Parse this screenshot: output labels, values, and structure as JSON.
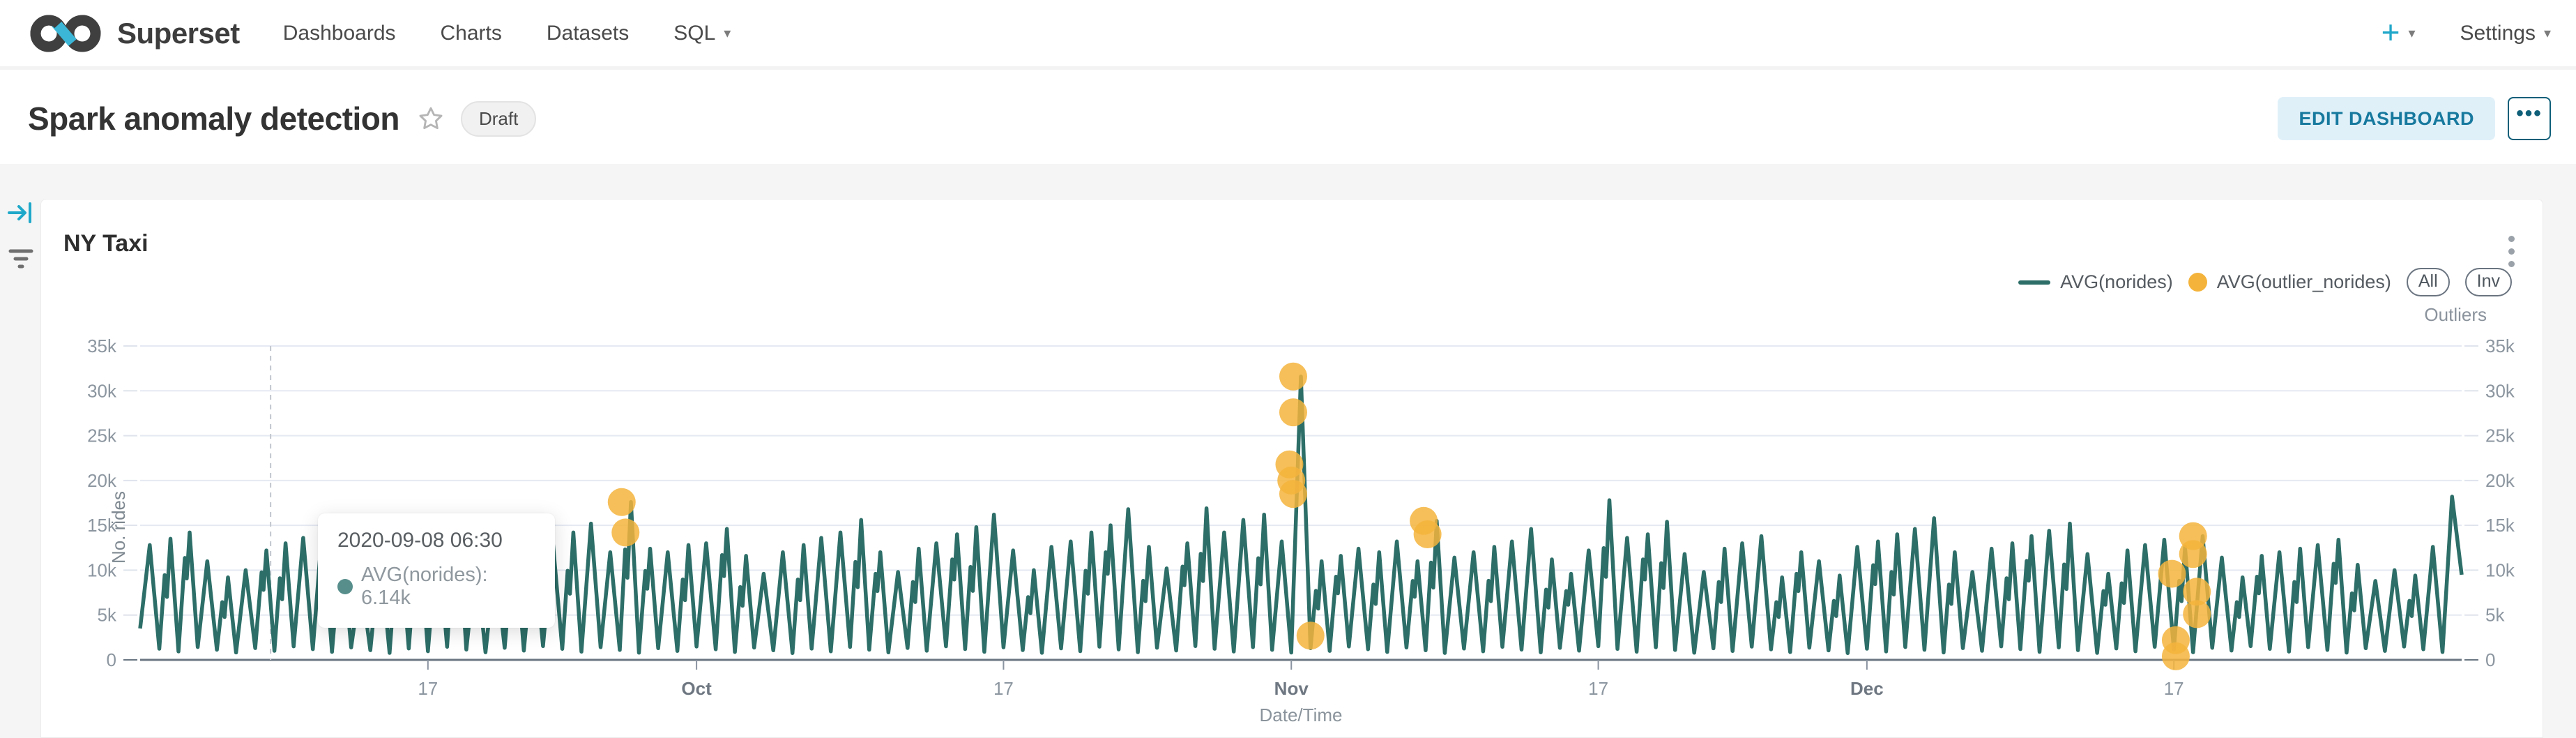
{
  "navbar": {
    "brand": "Superset",
    "items": [
      {
        "label": "Dashboards"
      },
      {
        "label": "Charts"
      },
      {
        "label": "Datasets"
      },
      {
        "label": "SQL"
      }
    ],
    "sql_caret": "▾",
    "plus_label": "+",
    "plus_caret": "▾",
    "settings_label": "Settings",
    "settings_caret": "▾",
    "accent_color": "#20A7C9"
  },
  "header": {
    "title": "Spark anomaly detection",
    "badge": "Draft",
    "edit_button": "EDIT DASHBOARD",
    "more_button": "•••"
  },
  "chart_panel": {
    "title": "NY Taxi",
    "legend": [
      {
        "label": "AVG(norides)",
        "type": "line",
        "color": "#2d6e68"
      },
      {
        "label": "AVG(outlier_norides)",
        "type": "dot",
        "color": "#f4b43c"
      }
    ],
    "buttons": {
      "all": "All",
      "inv": "Inv"
    },
    "buttons_caption": "Outliers"
  },
  "tooltip": {
    "date": "2020-09-08 06:30",
    "series_label": "AVG(norides): 6.14k"
  },
  "chart_data": {
    "type": "line",
    "title": "NY Taxi",
    "xlabel": "Date/Time",
    "ylabel": "No. rides",
    "x_start_date": "2020-09-02",
    "num_days": 121,
    "ylim": [
      0,
      35000
    ],
    "unit": "thousands of rides, half-hourly AVG(norides)",
    "grid": true,
    "legend_position": "top-right",
    "y_ticks": [
      {
        "v": 0,
        "label": "0"
      },
      {
        "v": 5,
        "label": "5k"
      },
      {
        "v": 10,
        "label": "10k"
      },
      {
        "v": 15,
        "label": "15k"
      },
      {
        "v": 20,
        "label": "20k"
      },
      {
        "v": 25,
        "label": "25k"
      },
      {
        "v": 30,
        "label": "30k"
      },
      {
        "v": 35,
        "label": "35k"
      }
    ],
    "x_ticks": [
      {
        "day": 15,
        "label": "17",
        "bold": false
      },
      {
        "day": 29,
        "label": "Oct",
        "bold": true
      },
      {
        "day": 45,
        "label": "17",
        "bold": false
      },
      {
        "day": 60,
        "label": "Nov",
        "bold": true
      },
      {
        "day": 76,
        "label": "17",
        "bold": false
      },
      {
        "day": 90,
        "label": "Dec",
        "bold": true
      },
      {
        "day": 106,
        "label": "17",
        "bold": false
      }
    ],
    "series": [
      {
        "name": "AVG(norides)",
        "color": "#2d6e68",
        "start_value": 3.5,
        "end_value": 9.5,
        "baseline_trough": 1.0,
        "daily_peaks": [
          12.8,
          13.5,
          14.2,
          11.0,
          9.2,
          10.0,
          12.2,
          13.0,
          13.6,
          14.8,
          11.4,
          9.0,
          12.0,
          12.6,
          13.2,
          14.0,
          15.0,
          11.2,
          9.4,
          12.2,
          12.8,
          13.4,
          14.2,
          15.2,
          12.0,
          17.6,
          12.4,
          12.0,
          12.8,
          13.0,
          14.6,
          11.6,
          9.6,
          12.0,
          12.8,
          13.6,
          14.2,
          15.6,
          12.0,
          9.8,
          12.4,
          13.0,
          14.0,
          14.8,
          16.2,
          12.2,
          10.0,
          12.6,
          13.2,
          14.2,
          15.0,
          16.8,
          12.6,
          10.2,
          13.0,
          16.9,
          14.2,
          15.6,
          16.2,
          13.2,
          31.6,
          11.0,
          11.6,
          12.4,
          12.0,
          13.2,
          11.0,
          15.5,
          11.4,
          12.0,
          12.6,
          13.2,
          14.6,
          11.2,
          9.6,
          12.2,
          17.8,
          13.6,
          14.0,
          15.4,
          11.8,
          9.8,
          12.4,
          13.0,
          13.8,
          9.2,
          12.0,
          11.0,
          9.4,
          12.6,
          13.2,
          14.0,
          14.6,
          15.8,
          12.0,
          9.8,
          12.4,
          13.0,
          13.8,
          14.4,
          15.2,
          11.8,
          9.6,
          12.2,
          12.8,
          13.4,
          12.6,
          13.8,
          11.4,
          9.2,
          11.6,
          12.0,
          12.4,
          12.8,
          13.4,
          10.6,
          8.8,
          10.0,
          9.4,
          12.6,
          18.2
        ]
      }
    ],
    "outlier_series": {
      "name": "AVG(outlier_norides)",
      "color": "#f4b43c",
      "points": [
        [
          25.1,
          17.6
        ],
        [
          25.3,
          14.2
        ],
        [
          60.1,
          31.6
        ],
        [
          60.1,
          27.6
        ],
        [
          59.9,
          21.8
        ],
        [
          60.0,
          20.0
        ],
        [
          60.1,
          18.5
        ],
        [
          61.0,
          2.7
        ],
        [
          66.9,
          15.5
        ],
        [
          67.1,
          14.0
        ],
        [
          105.9,
          9.6
        ],
        [
          106.1,
          2.2
        ],
        [
          106.1,
          0.4
        ],
        [
          107.0,
          13.8
        ],
        [
          107.0,
          11.8
        ],
        [
          107.2,
          7.6
        ],
        [
          107.2,
          5.1
        ]
      ]
    },
    "hover": {
      "day": 6.8,
      "style": "dashed"
    }
  }
}
